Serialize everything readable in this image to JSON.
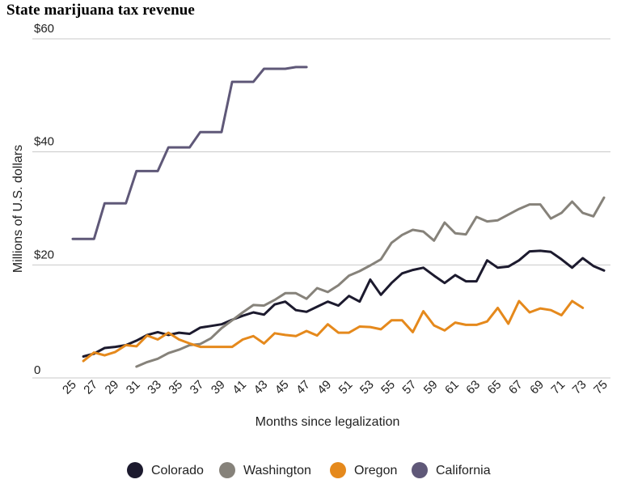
{
  "chart_data": {
    "type": "line",
    "title": "State marijuana tax revenue",
    "xlabel": "Months since legalization",
    "ylabel": "Millions of U.S. dollars",
    "xlim": [
      25,
      75
    ],
    "ylim": [
      0,
      60
    ],
    "x_ticks": [
      25,
      27,
      29,
      31,
      33,
      35,
      37,
      39,
      41,
      43,
      45,
      47,
      49,
      51,
      53,
      55,
      57,
      59,
      61,
      63,
      65,
      67,
      69,
      71,
      73,
      75
    ],
    "y_ticks": [
      {
        "value": 0,
        "label": "0"
      },
      {
        "value": 20,
        "label": "$20"
      },
      {
        "value": 40,
        "label": "$40"
      },
      {
        "value": 60,
        "label": "$60"
      }
    ],
    "grid": "horizontal",
    "legend_position": "bottom",
    "series": [
      {
        "name": "Colorado",
        "color": "#1c1a2e",
        "x": [
          26,
          27,
          28,
          29,
          30,
          31,
          32,
          33,
          34,
          35,
          36,
          37,
          38,
          39,
          40,
          41,
          42,
          43,
          44,
          45,
          46,
          47,
          48,
          49,
          50,
          51,
          52,
          53,
          54,
          55,
          56,
          57,
          58,
          59,
          60,
          61,
          62,
          63,
          64,
          65,
          66,
          67,
          68,
          69,
          70,
          71,
          72,
          73,
          74,
          75
        ],
        "y": [
          3.8,
          4.3,
          5.3,
          5.5,
          5.8,
          6.6,
          7.6,
          8.1,
          7.6,
          8.0,
          7.8,
          8.9,
          9.2,
          9.5,
          10.3,
          11.0,
          11.6,
          11.2,
          13.0,
          13.5,
          12.0,
          11.7,
          12.6,
          13.5,
          12.8,
          14.5,
          13.5,
          17.4,
          14.7,
          16.8,
          18.5,
          19.1,
          19.5,
          18.1,
          16.8,
          18.2,
          17.1,
          17.1,
          20.8,
          19.5,
          19.7,
          20.8,
          22.4,
          22.5,
          22.3,
          21.0,
          19.5,
          21.2,
          19.8,
          19.0
        ]
      },
      {
        "name": "Washington",
        "color": "#86827a",
        "x": [
          31,
          32,
          33,
          34,
          35,
          36,
          37,
          38,
          39,
          40,
          41,
          42,
          43,
          44,
          45,
          46,
          47,
          48,
          49,
          50,
          51,
          52,
          53,
          54,
          55,
          56,
          57,
          58,
          59,
          60,
          61,
          62,
          63,
          64,
          65,
          66,
          67,
          68,
          69,
          70,
          71,
          72,
          73,
          74,
          75
        ],
        "y": [
          2.0,
          2.8,
          3.4,
          4.4,
          5.0,
          5.8,
          6.0,
          7.0,
          8.8,
          10.2,
          11.6,
          12.9,
          12.8,
          13.8,
          15.0,
          15.0,
          14.0,
          15.9,
          15.2,
          16.4,
          18.1,
          18.9,
          19.9,
          21.0,
          23.9,
          25.3,
          26.2,
          25.9,
          24.3,
          27.5,
          25.6,
          25.4,
          28.5,
          27.7,
          27.9,
          28.9,
          29.9,
          30.7,
          30.7,
          28.2,
          29.2,
          31.2,
          29.2,
          28.6,
          31.9
        ]
      },
      {
        "name": "Oregon",
        "color": "#e5891c",
        "x": [
          26,
          27,
          28,
          29,
          30,
          31,
          32,
          33,
          34,
          35,
          36,
          37,
          38,
          39,
          40,
          41,
          42,
          43,
          44,
          45,
          46,
          47,
          48,
          49,
          50,
          51,
          52,
          53,
          54,
          55,
          56,
          57,
          58,
          59,
          60,
          61,
          62,
          63,
          64,
          65,
          66,
          67,
          68,
          69,
          70,
          71,
          72,
          73
        ],
        "y": [
          3.0,
          4.5,
          4.0,
          4.6,
          5.8,
          5.6,
          7.5,
          6.8,
          8.0,
          6.8,
          6.1,
          5.5,
          5.5,
          5.5,
          5.5,
          6.8,
          7.4,
          6.1,
          7.9,
          7.6,
          7.4,
          8.3,
          7.5,
          9.5,
          8.0,
          8.0,
          9.1,
          9.0,
          8.6,
          10.2,
          10.2,
          8.1,
          11.8,
          9.3,
          8.4,
          9.8,
          9.4,
          9.4,
          10.0,
          12.4,
          9.6,
          13.6,
          11.6,
          12.3,
          12.0,
          11.1,
          13.6,
          12.4
        ]
      },
      {
        "name": "California",
        "color": "#5f5878",
        "x": [
          25,
          26,
          27,
          28,
          29,
          30,
          31,
          32,
          33,
          34,
          35,
          36,
          37,
          38,
          39,
          40,
          41,
          42,
          43,
          44,
          45,
          46,
          47
        ],
        "y": [
          24.6,
          24.6,
          24.6,
          30.9,
          30.9,
          30.9,
          36.6,
          36.6,
          36.6,
          40.8,
          40.8,
          40.8,
          43.5,
          43.5,
          43.5,
          52.4,
          52.4,
          52.4,
          54.7,
          54.7,
          54.7,
          55.0,
          55.0
        ]
      }
    ]
  }
}
